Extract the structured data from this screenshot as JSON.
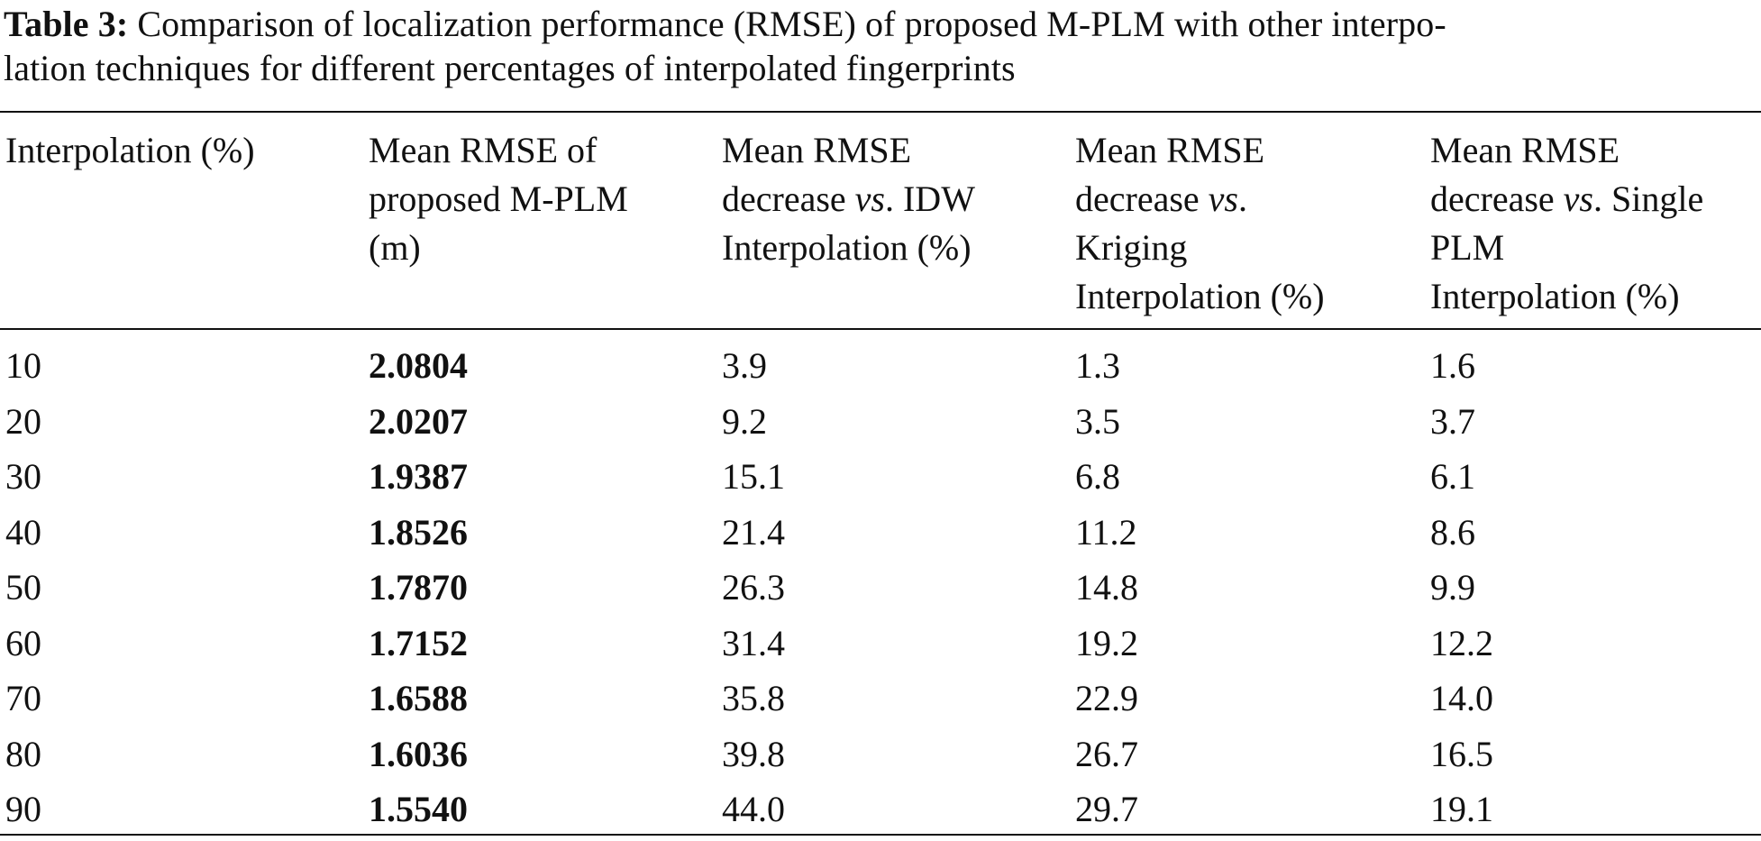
{
  "caption": {
    "label": "Table 3:",
    "text": " Comparison of localization performance (RMSE) of proposed M-PLM with other interpolation techniques for different percentages of interpolated fingerprints",
    "line1": " Comparison of localization performance (RMSE) of proposed M-PLM with other interpo-",
    "line2": "lation techniques for different percentages of interpolated fingerprints"
  },
  "table": {
    "headers": [
      {
        "lines": [
          "Interpolation (%)"
        ]
      },
      {
        "lines": [
          "Mean RMSE of",
          "proposed M-PLM",
          "(m)"
        ]
      },
      {
        "lines": [
          "Mean RMSE",
          "decrease ",
          "vs",
          ". IDW",
          "Interpolation (%)"
        ]
      },
      {
        "lines": [
          "Mean RMSE",
          "decrease ",
          "vs",
          ".",
          "Kriging",
          "Interpolation (%)"
        ]
      },
      {
        "lines": [
          "Mean RMSE",
          "decrease ",
          "vs",
          ". Single",
          "PLM",
          "Interpolation (%)"
        ]
      }
    ],
    "rows": [
      [
        "10",
        "2.0804",
        "3.9",
        "1.3",
        "1.6"
      ],
      [
        "20",
        "2.0207",
        "9.2",
        "3.5",
        "3.7"
      ],
      [
        "30",
        "1.9387",
        "15.1",
        "6.8",
        "6.1"
      ],
      [
        "40",
        "1.8526",
        "21.4",
        "11.2",
        "8.6"
      ],
      [
        "50",
        "1.7870",
        "26.3",
        "14.8",
        "9.9"
      ],
      [
        "60",
        "1.7152",
        "31.4",
        "19.2",
        "12.2"
      ],
      [
        "70",
        "1.6588",
        "35.8",
        "22.9",
        "14.0"
      ],
      [
        "80",
        "1.6036",
        "39.8",
        "26.7",
        "16.5"
      ],
      [
        "90",
        "1.5540",
        "44.0",
        "29.7",
        "19.1"
      ]
    ]
  }
}
